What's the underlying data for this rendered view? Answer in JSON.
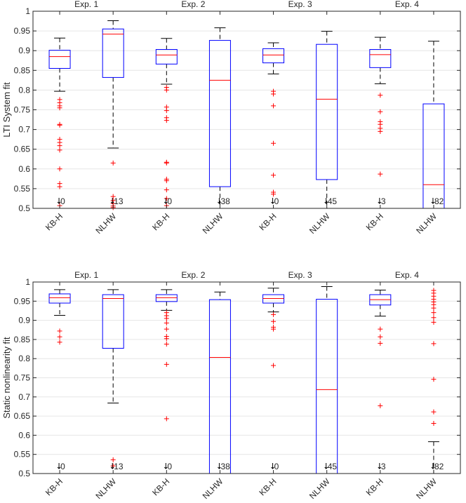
{
  "colors": {
    "box": "#0000ff",
    "median": "#ff0000",
    "outlier": "#ff0000",
    "whisker": "#000000",
    "grid": "#e6e6e6",
    "axis": "#262626"
  },
  "chart_data": [
    {
      "type": "boxplot",
      "ylabel": "LTI System fit",
      "ylim": [
        0.5,
        1
      ],
      "yticks": [
        0.5,
        0.55,
        0.6,
        0.65,
        0.7,
        0.75,
        0.8,
        0.85,
        0.9,
        0.95,
        1
      ],
      "ytick_labels": [
        "0.5",
        "0.55",
        "0.6",
        "0.65",
        "0.7",
        "0.75",
        "0.8",
        "0.85",
        "0.9",
        "0.95",
        "1"
      ],
      "grid": true,
      "groups": [
        "Exp. 1",
        "Exp. 2",
        "Exp. 3",
        "Exp. 4"
      ],
      "categories": [
        "KB-H",
        "NLHW",
        "KB-H",
        "NLHW",
        "KB-H",
        "NLHW",
        "KB-H",
        "NLHW"
      ],
      "boxes": [
        {
          "q1": 0.855,
          "median": 0.885,
          "q3": 0.901,
          "whisker_low": 0.797,
          "whisker_high": 0.932,
          "outliers": [
            0.776,
            0.768,
            0.76,
            0.755,
            0.713,
            0.711,
            0.675,
            0.667,
            0.659,
            0.648,
            0.6,
            0.563,
            0.555,
            0.507
          ],
          "below_count": "0"
        },
        {
          "q1": 0.832,
          "median": 0.942,
          "q3": 0.955,
          "whisker_low": 0.653,
          "whisker_high": 0.976,
          "outliers": [
            0.615,
            0.53,
            0.52,
            0.512,
            0.506,
            0.502
          ],
          "below_count": "13"
        },
        {
          "q1": 0.866,
          "median": 0.889,
          "q3": 0.903,
          "whisker_low": 0.815,
          "whisker_high": 0.931,
          "outliers": [
            0.807,
            0.8,
            0.757,
            0.748,
            0.73,
            0.723,
            0.617,
            0.615,
            0.574,
            0.57,
            0.547,
            0.525,
            0.507
          ],
          "below_count": "0"
        },
        {
          "q1": 0.555,
          "median": 0.825,
          "q3": 0.926,
          "whisker_low": 0.5,
          "whisker_high": 0.958,
          "outliers": [],
          "below_count": "38"
        },
        {
          "q1": 0.869,
          "median": 0.889,
          "q3": 0.905,
          "whisker_low": 0.841,
          "whisker_high": 0.92,
          "outliers": [
            0.797,
            0.79,
            0.76,
            0.665,
            0.584,
            0.541,
            0.536
          ],
          "below_count": "0"
        },
        {
          "q1": 0.573,
          "median": 0.777,
          "q3": 0.916,
          "whisker_low": 0.5,
          "whisker_high": 0.949,
          "outliers": [],
          "below_count": "45"
        },
        {
          "q1": 0.857,
          "median": 0.89,
          "q3": 0.903,
          "whisker_low": 0.816,
          "whisker_high": 0.934,
          "outliers": [
            0.787,
            0.745,
            0.72,
            0.713,
            0.703,
            0.695,
            0.587
          ],
          "below_count": "3"
        },
        {
          "q1": 0.5,
          "median": 0.56,
          "q3": 0.765,
          "whisker_low": 0.5,
          "whisker_high": 0.924,
          "outliers": [],
          "below_count": "82"
        }
      ]
    },
    {
      "type": "boxplot",
      "ylabel": "Static nonlinearity fit",
      "ylim": [
        0.5,
        1
      ],
      "yticks": [
        0.5,
        0.55,
        0.6,
        0.65,
        0.7,
        0.75,
        0.8,
        0.85,
        0.9,
        0.95,
        1
      ],
      "ytick_labels": [
        "0.5",
        "0.55",
        "0.6",
        "0.65",
        "0.7",
        "0.75",
        "0.8",
        "0.85",
        "0.9",
        "0.95",
        "1"
      ],
      "grid": true,
      "groups": [
        "Exp. 1",
        "Exp. 2",
        "Exp. 3",
        "Exp. 4"
      ],
      "categories": [
        "KB-H",
        "NLHW",
        "KB-H",
        "NLHW",
        "KB-H",
        "NLHW",
        "KB-H",
        "NLHW"
      ],
      "boxes": [
        {
          "q1": 0.945,
          "median": 0.959,
          "q3": 0.969,
          "whisker_low": 0.913,
          "whisker_high": 0.98,
          "outliers": [
            0.872,
            0.857,
            0.843
          ],
          "below_count": "0"
        },
        {
          "q1": 0.827,
          "median": 0.957,
          "q3": 0.967,
          "whisker_low": 0.684,
          "whisker_high": 0.98,
          "outliers": [
            0.536,
            0.52
          ],
          "below_count": "13"
        },
        {
          "q1": 0.949,
          "median": 0.959,
          "q3": 0.967,
          "whisker_low": 0.926,
          "whisker_high": 0.98,
          "outliers": [
            0.92,
            0.912,
            0.905,
            0.893,
            0.877,
            0.858,
            0.852,
            0.838,
            0.785,
            0.643
          ],
          "below_count": "0"
        },
        {
          "q1": 0.5,
          "median": 0.803,
          "q3": 0.954,
          "whisker_low": 0.5,
          "whisker_high": 0.974,
          "outliers": [],
          "below_count": "38"
        },
        {
          "q1": 0.945,
          "median": 0.957,
          "q3": 0.967,
          "whisker_low": 0.922,
          "whisker_high": 0.984,
          "outliers": [
            0.915,
            0.897,
            0.882,
            0.877,
            0.782
          ],
          "below_count": "0"
        },
        {
          "q1": 0.5,
          "median": 0.719,
          "q3": 0.955,
          "whisker_low": 0.5,
          "whisker_high": 0.988,
          "outliers": [],
          "below_count": "45"
        },
        {
          "q1": 0.94,
          "median": 0.954,
          "q3": 0.967,
          "whisker_low": 0.911,
          "whisker_high": 0.979,
          "outliers": [
            0.877,
            0.857,
            0.84,
            0.677
          ],
          "below_count": "3"
        },
        {
          "q1": 0.5,
          "median": 0.5,
          "q3": 0.5,
          "whisker_low": 0.5,
          "whisker_high": 0.583,
          "outliers": [
            0.978,
            0.971,
            0.963,
            0.955,
            0.948,
            0.941,
            0.932,
            0.92,
            0.907,
            0.895,
            0.839,
            0.746,
            0.661,
            0.631
          ],
          "below_count": "82"
        }
      ]
    }
  ]
}
